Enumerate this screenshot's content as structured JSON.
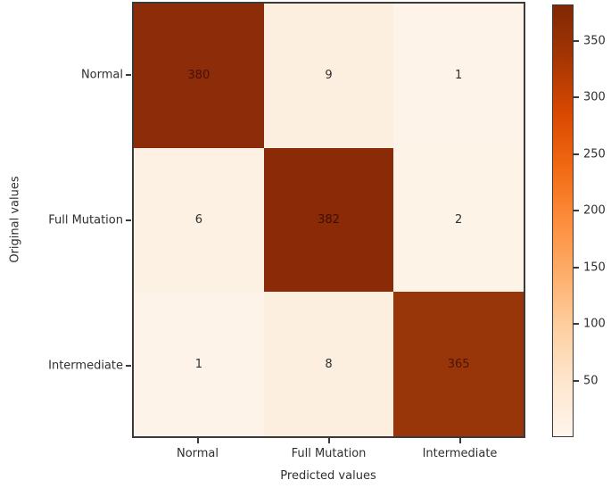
{
  "figure": {
    "background": "#ffffff"
  },
  "chart_data": {
    "type": "heatmap",
    "title": "",
    "xlabel": "Predicted values",
    "ylabel": "Original values",
    "x_categories": [
      "Normal",
      "Full Mutation",
      "Intermediate"
    ],
    "y_categories": [
      "Normal",
      "Full Mutation",
      "Intermediate"
    ],
    "matrix": [
      [
        380,
        9,
        1
      ],
      [
        6,
        382,
        2
      ],
      [
        1,
        8,
        365
      ]
    ],
    "colormap": "Oranges",
    "vmin": 0,
    "vmax": 382,
    "cell_colors": [
      [
        "#8d2c09",
        "#fcefdf",
        "#fdf3e8"
      ],
      [
        "#fdf1e3",
        "#8a2a07",
        "#fdf3e7"
      ],
      [
        "#fdf3e8",
        "#fcefe0",
        "#983509"
      ]
    ],
    "cell_text_colors": [
      [
        "#451107",
        "#2f2f2f",
        "#2f2f2f"
      ],
      [
        "#2f2f2f",
        "#3f0e05",
        "#2f2f2f"
      ],
      [
        "#2f2f2f",
        "#2f2f2f",
        "#4c1506"
      ]
    ],
    "colorbar": {
      "ticks": [
        50,
        100,
        150,
        200,
        250,
        300,
        350
      ],
      "gradient_stops": [
        {
          "pos": 0.0,
          "color": "#fff5eb"
        },
        {
          "pos": 0.125,
          "color": "#fee6ce"
        },
        {
          "pos": 0.25,
          "color": "#fdd0a2"
        },
        {
          "pos": 0.375,
          "color": "#fdae6b"
        },
        {
          "pos": 0.5,
          "color": "#fd8d3c"
        },
        {
          "pos": 0.625,
          "color": "#f16913"
        },
        {
          "pos": 0.75,
          "color": "#d94801"
        },
        {
          "pos": 0.875,
          "color": "#a63603"
        },
        {
          "pos": 1.0,
          "color": "#7f2704"
        }
      ]
    },
    "legend": "none",
    "grid": "off"
  }
}
